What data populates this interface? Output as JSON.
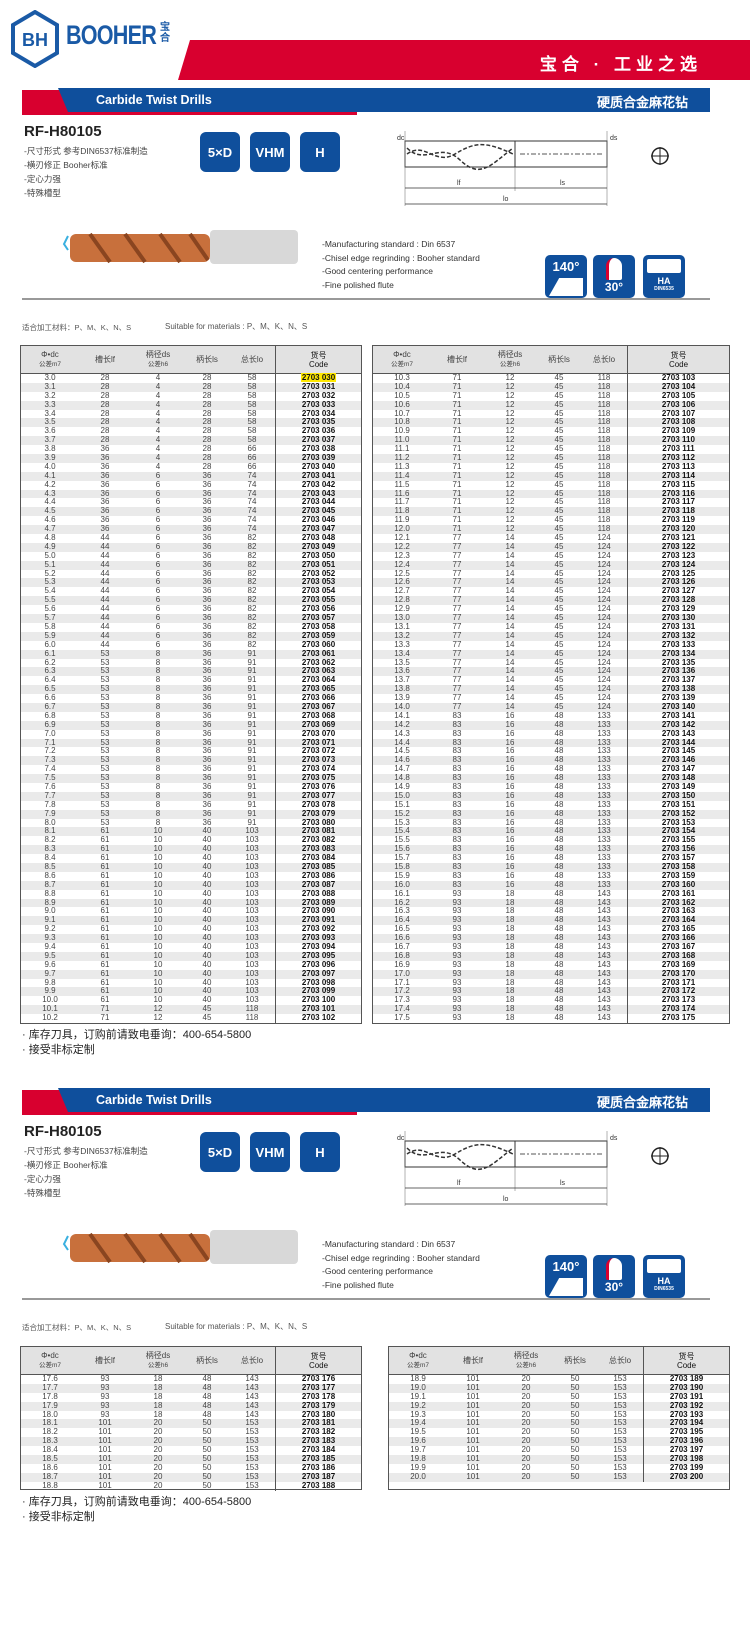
{
  "brand": {
    "name": "BOOHER",
    "name_cn": "宝合",
    "logo_text": "BH",
    "slogan": "宝合 · 工业之选"
  },
  "colors": {
    "brand_blue": "#0f4f9c",
    "brand_red": "#d8002f",
    "highlight": "#ffe800"
  },
  "product": {
    "title_en": "Carbide Twist Drills",
    "title_cn": "硬质合金麻花钻",
    "model": "RF-H80105",
    "bullets_cn": [
      "-尺寸形式  参考DIN6537标准制造",
      "-横刃修正  Booher标准",
      "-定心力强",
      "-特殊槽型"
    ],
    "badges": [
      "5×D",
      "VHM",
      "H"
    ],
    "features_en": [
      "-Manufacturing standard : Din 6537",
      "-Chisel edge regrinding : Booher standard",
      "-Good centering performance",
      "-Fine polished flute"
    ],
    "icons": {
      "point_angle": "140°",
      "helix_angle": "30°",
      "shank": "HA",
      "shank_std": "DIN6535"
    },
    "diagram_labels": {
      "dc": "dc",
      "ds": "ds",
      "lf": "lf",
      "ls": "ls",
      "lo": "lo"
    },
    "materials_cn": "适合加工材料：P、M、K、N、S",
    "materials_en": "Suitable for materials : P、M、K、N、S"
  },
  "table_header": {
    "dc": "Φ•dc",
    "dc_tol": "公差m7",
    "lf": "槽长lf",
    "ds": "柄径ds",
    "ds_tol": "公差h6",
    "ls": "柄长ls",
    "lo": "总长lo",
    "code_cn": "货号",
    "code_en": "Code"
  },
  "highlighted_code": "2703 030",
  "notes": [
    "· 库存刀具，订购前请致电垂询：400-654-5800",
    "· 接受非标定制"
  ],
  "tables": {
    "t1": [
      [
        "3.0",
        "28",
        "4",
        "28",
        "58",
        "2703 030"
      ],
      [
        "3.1",
        "28",
        "4",
        "28",
        "58",
        "2703 031"
      ],
      [
        "3.2",
        "28",
        "4",
        "28",
        "58",
        "2703 032"
      ],
      [
        "3.3",
        "28",
        "4",
        "28",
        "58",
        "2703 033"
      ],
      [
        "3.4",
        "28",
        "4",
        "28",
        "58",
        "2703 034"
      ],
      [
        "3.5",
        "28",
        "4",
        "28",
        "58",
        "2703 035"
      ],
      [
        "3.6",
        "28",
        "4",
        "28",
        "58",
        "2703 036"
      ],
      [
        "3.7",
        "28",
        "4",
        "28",
        "58",
        "2703 037"
      ],
      [
        "3.8",
        "36",
        "4",
        "28",
        "66",
        "2703 038"
      ],
      [
        "3.9",
        "36",
        "4",
        "28",
        "66",
        "2703 039"
      ],
      [
        "4.0",
        "36",
        "4",
        "28",
        "66",
        "2703 040"
      ],
      [
        "4.1",
        "36",
        "6",
        "36",
        "74",
        "2703 041"
      ],
      [
        "4.2",
        "36",
        "6",
        "36",
        "74",
        "2703 042"
      ],
      [
        "4.3",
        "36",
        "6",
        "36",
        "74",
        "2703 043"
      ],
      [
        "4.4",
        "36",
        "6",
        "36",
        "74",
        "2703 044"
      ],
      [
        "4.5",
        "36",
        "6",
        "36",
        "74",
        "2703 045"
      ],
      [
        "4.6",
        "36",
        "6",
        "36",
        "74",
        "2703 046"
      ],
      [
        "4.7",
        "36",
        "6",
        "36",
        "74",
        "2703 047"
      ],
      [
        "4.8",
        "44",
        "6",
        "36",
        "82",
        "2703 048"
      ],
      [
        "4.9",
        "44",
        "6",
        "36",
        "82",
        "2703 049"
      ],
      [
        "5.0",
        "44",
        "6",
        "36",
        "82",
        "2703 050"
      ],
      [
        "5.1",
        "44",
        "6",
        "36",
        "82",
        "2703 051"
      ],
      [
        "5.2",
        "44",
        "6",
        "36",
        "82",
        "2703 052"
      ],
      [
        "5.3",
        "44",
        "6",
        "36",
        "82",
        "2703 053"
      ],
      [
        "5.4",
        "44",
        "6",
        "36",
        "82",
        "2703 054"
      ],
      [
        "5.5",
        "44",
        "6",
        "36",
        "82",
        "2703 055"
      ],
      [
        "5.6",
        "44",
        "6",
        "36",
        "82",
        "2703 056"
      ],
      [
        "5.7",
        "44",
        "6",
        "36",
        "82",
        "2703 057"
      ],
      [
        "5.8",
        "44",
        "6",
        "36",
        "82",
        "2703 058"
      ],
      [
        "5.9",
        "44",
        "6",
        "36",
        "82",
        "2703 059"
      ],
      [
        "6.0",
        "44",
        "6",
        "36",
        "82",
        "2703 060"
      ],
      [
        "6.1",
        "53",
        "8",
        "36",
        "91",
        "2703 061"
      ],
      [
        "6.2",
        "53",
        "8",
        "36",
        "91",
        "2703 062"
      ],
      [
        "6.3",
        "53",
        "8",
        "36",
        "91",
        "2703 063"
      ],
      [
        "6.4",
        "53",
        "8",
        "36",
        "91",
        "2703 064"
      ],
      [
        "6.5",
        "53",
        "8",
        "36",
        "91",
        "2703 065"
      ],
      [
        "6.6",
        "53",
        "8",
        "36",
        "91",
        "2703 066"
      ],
      [
        "6.7",
        "53",
        "8",
        "36",
        "91",
        "2703 067"
      ],
      [
        "6.8",
        "53",
        "8",
        "36",
        "91",
        "2703 068"
      ],
      [
        "6.9",
        "53",
        "8",
        "36",
        "91",
        "2703 069"
      ],
      [
        "7.0",
        "53",
        "8",
        "36",
        "91",
        "2703 070"
      ],
      [
        "7.1",
        "53",
        "8",
        "36",
        "91",
        "2703 071"
      ],
      [
        "7.2",
        "53",
        "8",
        "36",
        "91",
        "2703 072"
      ],
      [
        "7.3",
        "53",
        "8",
        "36",
        "91",
        "2703 073"
      ],
      [
        "7.4",
        "53",
        "8",
        "36",
        "91",
        "2703 074"
      ],
      [
        "7.5",
        "53",
        "8",
        "36",
        "91",
        "2703 075"
      ],
      [
        "7.6",
        "53",
        "8",
        "36",
        "91",
        "2703 076"
      ],
      [
        "7.7",
        "53",
        "8",
        "36",
        "91",
        "2703 077"
      ],
      [
        "7.8",
        "53",
        "8",
        "36",
        "91",
        "2703 078"
      ],
      [
        "7.9",
        "53",
        "8",
        "36",
        "91",
        "2703 079"
      ],
      [
        "8.0",
        "53",
        "8",
        "36",
        "91",
        "2703 080"
      ],
      [
        "8.1",
        "61",
        "10",
        "40",
        "103",
        "2703 081"
      ],
      [
        "8.2",
        "61",
        "10",
        "40",
        "103",
        "2703 082"
      ],
      [
        "8.3",
        "61",
        "10",
        "40",
        "103",
        "2703 083"
      ],
      [
        "8.4",
        "61",
        "10",
        "40",
        "103",
        "2703 084"
      ],
      [
        "8.5",
        "61",
        "10",
        "40",
        "103",
        "2703 085"
      ],
      [
        "8.6",
        "61",
        "10",
        "40",
        "103",
        "2703 086"
      ],
      [
        "8.7",
        "61",
        "10",
        "40",
        "103",
        "2703 087"
      ],
      [
        "8.8",
        "61",
        "10",
        "40",
        "103",
        "2703 088"
      ],
      [
        "8.9",
        "61",
        "10",
        "40",
        "103",
        "2703 089"
      ],
      [
        "9.0",
        "61",
        "10",
        "40",
        "103",
        "2703 090"
      ],
      [
        "9.1",
        "61",
        "10",
        "40",
        "103",
        "2703 091"
      ],
      [
        "9.2",
        "61",
        "10",
        "40",
        "103",
        "2703 092"
      ],
      [
        "9.3",
        "61",
        "10",
        "40",
        "103",
        "2703 093"
      ],
      [
        "9.4",
        "61",
        "10",
        "40",
        "103",
        "2703 094"
      ],
      [
        "9.5",
        "61",
        "10",
        "40",
        "103",
        "2703 095"
      ],
      [
        "9.6",
        "61",
        "10",
        "40",
        "103",
        "2703 096"
      ],
      [
        "9.7",
        "61",
        "10",
        "40",
        "103",
        "2703 097"
      ],
      [
        "9.8",
        "61",
        "10",
        "40",
        "103",
        "2703 098"
      ],
      [
        "9.9",
        "61",
        "10",
        "40",
        "103",
        "2703 099"
      ],
      [
        "10.0",
        "61",
        "10",
        "40",
        "103",
        "2703 100"
      ],
      [
        "10.1",
        "71",
        "12",
        "45",
        "118",
        "2703 101"
      ],
      [
        "10.2",
        "71",
        "12",
        "45",
        "118",
        "2703 102"
      ]
    ],
    "t2": [
      [
        "10.3",
        "71",
        "12",
        "45",
        "118",
        "2703 103"
      ],
      [
        "10.4",
        "71",
        "12",
        "45",
        "118",
        "2703 104"
      ],
      [
        "10.5",
        "71",
        "12",
        "45",
        "118",
        "2703 105"
      ],
      [
        "10.6",
        "71",
        "12",
        "45",
        "118",
        "2703 106"
      ],
      [
        "10.7",
        "71",
        "12",
        "45",
        "118",
        "2703 107"
      ],
      [
        "10.8",
        "71",
        "12",
        "45",
        "118",
        "2703 108"
      ],
      [
        "10.9",
        "71",
        "12",
        "45",
        "118",
        "2703 109"
      ],
      [
        "11.0",
        "71",
        "12",
        "45",
        "118",
        "2703 110"
      ],
      [
        "11.1",
        "71",
        "12",
        "45",
        "118",
        "2703 111"
      ],
      [
        "11.2",
        "71",
        "12",
        "45",
        "118",
        "2703 112"
      ],
      [
        "11.3",
        "71",
        "12",
        "45",
        "118",
        "2703 113"
      ],
      [
        "11.4",
        "71",
        "12",
        "45",
        "118",
        "2703 114"
      ],
      [
        "11.5",
        "71",
        "12",
        "45",
        "118",
        "2703 115"
      ],
      [
        "11.6",
        "71",
        "12",
        "45",
        "118",
        "2703 116"
      ],
      [
        "11.7",
        "71",
        "12",
        "45",
        "118",
        "2703 117"
      ],
      [
        "11.8",
        "71",
        "12",
        "45",
        "118",
        "2703 118"
      ],
      [
        "11.9",
        "71",
        "12",
        "45",
        "118",
        "2703 119"
      ],
      [
        "12.0",
        "71",
        "12",
        "45",
        "118",
        "2703 120"
      ],
      [
        "12.1",
        "77",
        "14",
        "45",
        "124",
        "2703 121"
      ],
      [
        "12.2",
        "77",
        "14",
        "45",
        "124",
        "2703 122"
      ],
      [
        "12.3",
        "77",
        "14",
        "45",
        "124",
        "2703 123"
      ],
      [
        "12.4",
        "77",
        "14",
        "45",
        "124",
        "2703 124"
      ],
      [
        "12.5",
        "77",
        "14",
        "45",
        "124",
        "2703 125"
      ],
      [
        "12.6",
        "77",
        "14",
        "45",
        "124",
        "2703 126"
      ],
      [
        "12.7",
        "77",
        "14",
        "45",
        "124",
        "2703 127"
      ],
      [
        "12.8",
        "77",
        "14",
        "45",
        "124",
        "2703 128"
      ],
      [
        "12.9",
        "77",
        "14",
        "45",
        "124",
        "2703 129"
      ],
      [
        "13.0",
        "77",
        "14",
        "45",
        "124",
        "2703 130"
      ],
      [
        "13.1",
        "77",
        "14",
        "45",
        "124",
        "2703 131"
      ],
      [
        "13.2",
        "77",
        "14",
        "45",
        "124",
        "2703 132"
      ],
      [
        "13.3",
        "77",
        "14",
        "45",
        "124",
        "2703 133"
      ],
      [
        "13.4",
        "77",
        "14",
        "45",
        "124",
        "2703 134"
      ],
      [
        "13.5",
        "77",
        "14",
        "45",
        "124",
        "2703 135"
      ],
      [
        "13.6",
        "77",
        "14",
        "45",
        "124",
        "2703 136"
      ],
      [
        "13.7",
        "77",
        "14",
        "45",
        "124",
        "2703 137"
      ],
      [
        "13.8",
        "77",
        "14",
        "45",
        "124",
        "2703 138"
      ],
      [
        "13.9",
        "77",
        "14",
        "45",
        "124",
        "2703 139"
      ],
      [
        "14.0",
        "77",
        "14",
        "45",
        "124",
        "2703 140"
      ],
      [
        "14.1",
        "83",
        "16",
        "48",
        "133",
        "2703 141"
      ],
      [
        "14.2",
        "83",
        "16",
        "48",
        "133",
        "2703 142"
      ],
      [
        "14.3",
        "83",
        "16",
        "48",
        "133",
        "2703 143"
      ],
      [
        "14.4",
        "83",
        "16",
        "48",
        "133",
        "2703 144"
      ],
      [
        "14.5",
        "83",
        "16",
        "48",
        "133",
        "2703 145"
      ],
      [
        "14.6",
        "83",
        "16",
        "48",
        "133",
        "2703 146"
      ],
      [
        "14.7",
        "83",
        "16",
        "48",
        "133",
        "2703 147"
      ],
      [
        "14.8",
        "83",
        "16",
        "48",
        "133",
        "2703 148"
      ],
      [
        "14.9",
        "83",
        "16",
        "48",
        "133",
        "2703 149"
      ],
      [
        "15.0",
        "83",
        "16",
        "48",
        "133",
        "2703 150"
      ],
      [
        "15.1",
        "83",
        "16",
        "48",
        "133",
        "2703 151"
      ],
      [
        "15.2",
        "83",
        "16",
        "48",
        "133",
        "2703 152"
      ],
      [
        "15.3",
        "83",
        "16",
        "48",
        "133",
        "2703 153"
      ],
      [
        "15.4",
        "83",
        "16",
        "48",
        "133",
        "2703 154"
      ],
      [
        "15.5",
        "83",
        "16",
        "48",
        "133",
        "2703 155"
      ],
      [
        "15.6",
        "83",
        "16",
        "48",
        "133",
        "2703 156"
      ],
      [
        "15.7",
        "83",
        "16",
        "48",
        "133",
        "2703 157"
      ],
      [
        "15.8",
        "83",
        "16",
        "48",
        "133",
        "2703 158"
      ],
      [
        "15.9",
        "83",
        "16",
        "48",
        "133",
        "2703 159"
      ],
      [
        "16.0",
        "83",
        "16",
        "48",
        "133",
        "2703 160"
      ],
      [
        "16.1",
        "93",
        "18",
        "48",
        "143",
        "2703 161"
      ],
      [
        "16.2",
        "93",
        "18",
        "48",
        "143",
        "2703 162"
      ],
      [
        "16.3",
        "93",
        "18",
        "48",
        "143",
        "2703 163"
      ],
      [
        "16.4",
        "93",
        "18",
        "48",
        "143",
        "2703 164"
      ],
      [
        "16.5",
        "93",
        "18",
        "48",
        "143",
        "2703 165"
      ],
      [
        "16.6",
        "93",
        "18",
        "48",
        "143",
        "2703 166"
      ],
      [
        "16.7",
        "93",
        "18",
        "48",
        "143",
        "2703 167"
      ],
      [
        "16.8",
        "93",
        "18",
        "48",
        "143",
        "2703 168"
      ],
      [
        "16.9",
        "93",
        "18",
        "48",
        "143",
        "2703 169"
      ],
      [
        "17.0",
        "93",
        "18",
        "48",
        "143",
        "2703 170"
      ],
      [
        "17.1",
        "93",
        "18",
        "48",
        "143",
        "2703 171"
      ],
      [
        "17.2",
        "93",
        "18",
        "48",
        "143",
        "2703 172"
      ],
      [
        "17.3",
        "93",
        "18",
        "48",
        "143",
        "2703 173"
      ],
      [
        "17.4",
        "93",
        "18",
        "48",
        "143",
        "2703 174"
      ],
      [
        "17.5",
        "93",
        "18",
        "48",
        "143",
        "2703 175"
      ]
    ],
    "t3": [
      [
        "17.6",
        "93",
        "18",
        "48",
        "143",
        "2703 176"
      ],
      [
        "17.7",
        "93",
        "18",
        "48",
        "143",
        "2703 177"
      ],
      [
        "17.8",
        "93",
        "18",
        "48",
        "143",
        "2703 178"
      ],
      [
        "17.9",
        "93",
        "18",
        "48",
        "143",
        "2703 179"
      ],
      [
        "18.0",
        "93",
        "18",
        "48",
        "143",
        "2703 180"
      ],
      [
        "18.1",
        "101",
        "20",
        "50",
        "153",
        "2703 181"
      ],
      [
        "18.2",
        "101",
        "20",
        "50",
        "153",
        "2703 182"
      ],
      [
        "18.3",
        "101",
        "20",
        "50",
        "153",
        "2703 183"
      ],
      [
        "18.4",
        "101",
        "20",
        "50",
        "153",
        "2703 184"
      ],
      [
        "18.5",
        "101",
        "20",
        "50",
        "153",
        "2703 185"
      ],
      [
        "18.6",
        "101",
        "20",
        "50",
        "153",
        "2703 186"
      ],
      [
        "18.7",
        "101",
        "20",
        "50",
        "153",
        "2703 187"
      ],
      [
        "18.8",
        "101",
        "20",
        "50",
        "153",
        "2703 188"
      ]
    ],
    "t4": [
      [
        "18.9",
        "101",
        "20",
        "50",
        "153",
        "2703 189"
      ],
      [
        "19.0",
        "101",
        "20",
        "50",
        "153",
        "2703 190"
      ],
      [
        "19.1",
        "101",
        "20",
        "50",
        "153",
        "2703 191"
      ],
      [
        "19.2",
        "101",
        "20",
        "50",
        "153",
        "2703 192"
      ],
      [
        "19.3",
        "101",
        "20",
        "50",
        "153",
        "2703 193"
      ],
      [
        "19.4",
        "101",
        "20",
        "50",
        "153",
        "2703 194"
      ],
      [
        "19.5",
        "101",
        "20",
        "50",
        "153",
        "2703 195"
      ],
      [
        "19.6",
        "101",
        "20",
        "50",
        "153",
        "2703 196"
      ],
      [
        "19.7",
        "101",
        "20",
        "50",
        "153",
        "2703 197"
      ],
      [
        "19.8",
        "101",
        "20",
        "50",
        "153",
        "2703 198"
      ],
      [
        "19.9",
        "101",
        "20",
        "50",
        "153",
        "2703 199"
      ],
      [
        "20.0",
        "101",
        "20",
        "50",
        "153",
        "2703 200"
      ]
    ]
  }
}
